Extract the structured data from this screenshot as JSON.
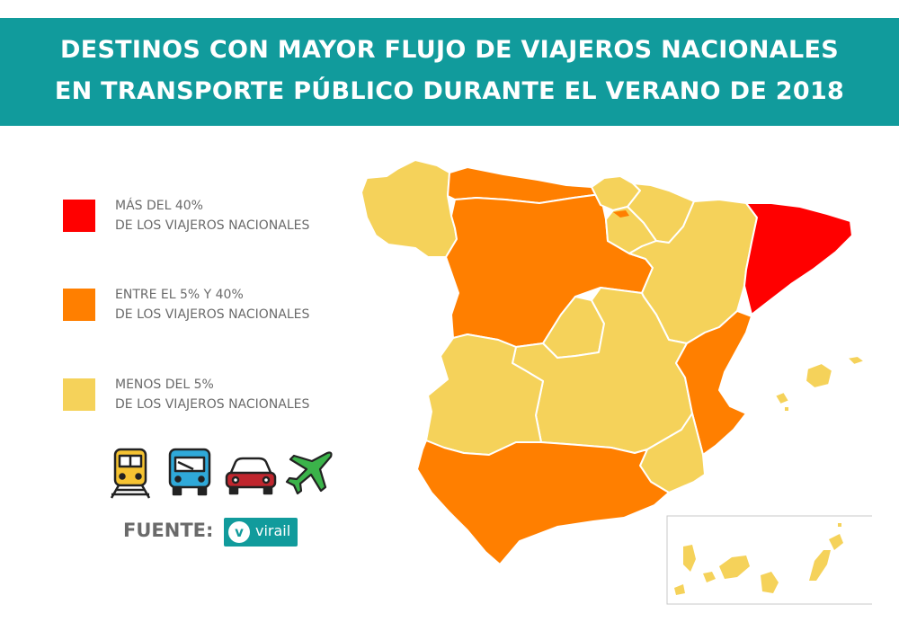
{
  "title": {
    "line1": "DESTINOS CON MAYOR FLUJO DE VIAJEROS NACIONALES",
    "line2": "EN TRANSPORTE PÚBLICO DURANTE EL VERANO DE 2018"
  },
  "legend": [
    {
      "line1": "MÁS DEL 40%",
      "line2": "DE LOS VIAJEROS NACIONALES",
      "color": "#ff0000"
    },
    {
      "line1": "ENTRE EL 5% Y 40%",
      "line2": "DE LOS VIAJEROS NACIONALES",
      "color": "#ff7f00"
    },
    {
      "line1": "MENOS DEL 5%",
      "line2": "DE LOS VIAJEROS NACIONALES",
      "color": "#f5d25a"
    }
  ],
  "transport_icons": [
    "train-icon",
    "bus-icon",
    "car-icon",
    "airplane-icon"
  ],
  "source": {
    "label": "FUENTE:",
    "logo_letter": "v",
    "logo_text": "virail"
  },
  "colors": {
    "banner": "#119b9c",
    "high": "#ff0000",
    "mid": "#ff7f00",
    "low": "#f5d25a",
    "label_text": "#6a6a6a"
  },
  "regions": [
    {
      "name": "Galicia",
      "category": "low"
    },
    {
      "name": "Asturias y Cantabria",
      "category": "mid"
    },
    {
      "name": "País Vasco",
      "category": "low"
    },
    {
      "name": "Navarra",
      "category": "low"
    },
    {
      "name": "La Rioja",
      "category": "low"
    },
    {
      "name": "Aragón",
      "category": "low"
    },
    {
      "name": "Cataluña",
      "category": "high"
    },
    {
      "name": "Castilla y León",
      "category": "mid"
    },
    {
      "name": "Madrid",
      "category": "low"
    },
    {
      "name": "Castilla-La Mancha",
      "category": "low"
    },
    {
      "name": "Extremadura",
      "category": "low"
    },
    {
      "name": "Comunidad Valenciana",
      "category": "mid"
    },
    {
      "name": "Murcia",
      "category": "low"
    },
    {
      "name": "Andalucía",
      "category": "mid"
    },
    {
      "name": "Islas Baleares",
      "category": "low"
    },
    {
      "name": "Islas Canarias",
      "category": "low"
    }
  ]
}
